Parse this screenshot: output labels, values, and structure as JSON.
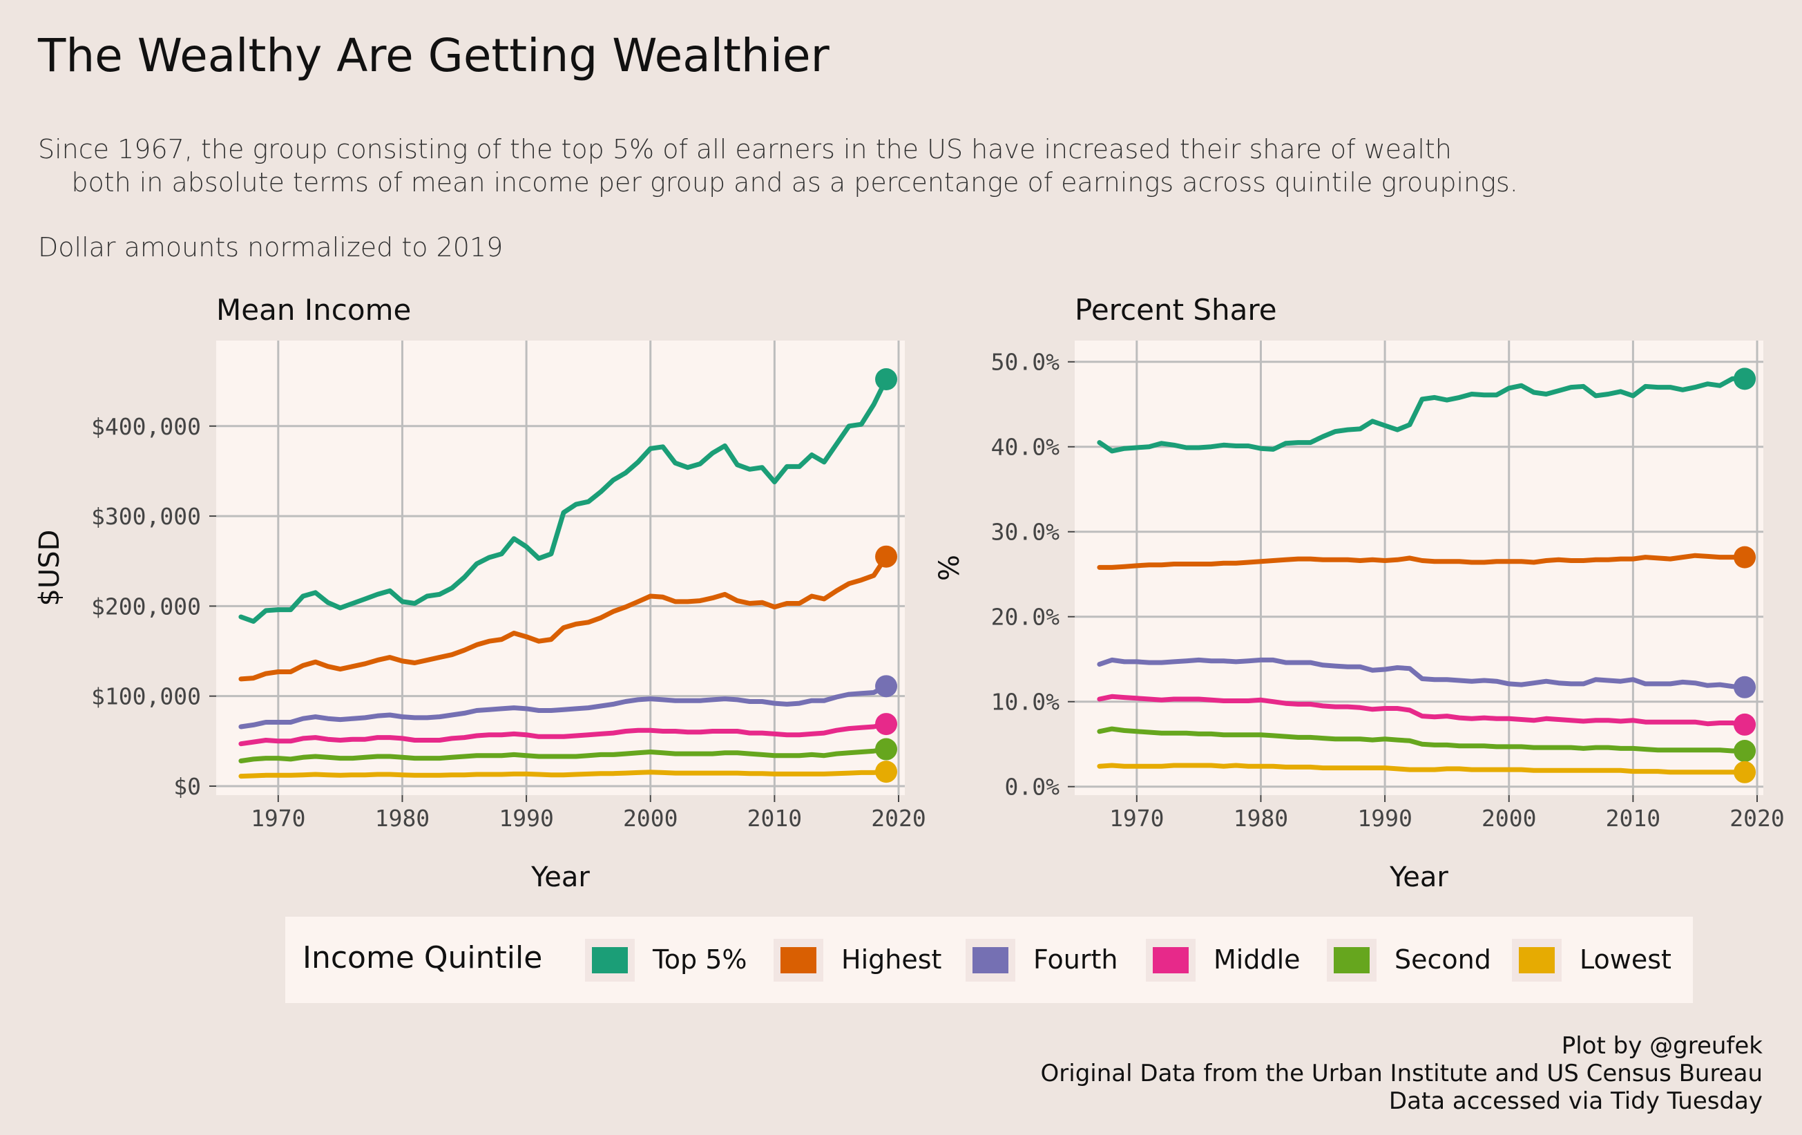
{
  "title": "The Wealthy Are Getting Wealthier",
  "subtitle_lines": [
    "Since 1967, the group consisting of the top 5% of all earners in the US have increased their share of wealth",
    "    both in absolute terms of mean income per group and as a percentange of earnings across quintile groupings."
  ],
  "subtitle_note": "Dollar amounts normalized to 2019",
  "caption": [
    "Plot by @greufek",
    "Original Data from the Urban Institute and US Census Bureau",
    "Data accessed via Tidy Tuesday"
  ],
  "legend": {
    "title": "Income Quintile",
    "items": [
      {
        "label": "Top 5%",
        "color": "#1B9E77"
      },
      {
        "label": "Highest",
        "color": "#D95F02"
      },
      {
        "label": "Fourth",
        "color": "#7570B3"
      },
      {
        "label": "Middle",
        "color": "#E7298A"
      },
      {
        "label": "Second",
        "color": "#66A61E"
      },
      {
        "label": "Lowest",
        "color": "#E6AB02"
      }
    ]
  },
  "chart_data": [
    {
      "type": "line",
      "title": "Mean Income",
      "xlabel": "Year",
      "ylabel": "$USD",
      "xlim": [
        1965,
        2020.5
      ],
      "ylim": [
        -10000,
        495000
      ],
      "x_ticks": [
        1970,
        1980,
        1990,
        2000,
        2010,
        2020
      ],
      "y_ticks": [
        0,
        100000,
        200000,
        300000,
        400000
      ],
      "y_tick_labels": [
        "$0",
        "$100,000",
        "$200,000",
        "$300,000",
        "$400,000"
      ],
      "grid": true,
      "end_point_markers": true,
      "x": [
        1967,
        1968,
        1969,
        1970,
        1971,
        1972,
        1973,
        1974,
        1975,
        1976,
        1977,
        1978,
        1979,
        1980,
        1981,
        1982,
        1983,
        1984,
        1985,
        1986,
        1987,
        1988,
        1989,
        1990,
        1991,
        1992,
        1993,
        1994,
        1995,
        1996,
        1997,
        1998,
        1999,
        2000,
        2001,
        2002,
        2003,
        2004,
        2005,
        2006,
        2007,
        2008,
        2009,
        2010,
        2011,
        2012,
        2013,
        2014,
        2015,
        2016,
        2017,
        2018,
        2019
      ],
      "series": [
        {
          "name": "Top 5%",
          "color": "#1B9E77",
          "values": [
            188000,
            183000,
            195000,
            196000,
            196000,
            211000,
            215000,
            204000,
            198000,
            203000,
            208000,
            213000,
            217000,
            205000,
            203000,
            211000,
            213000,
            220000,
            232000,
            247000,
            254000,
            258000,
            275000,
            266000,
            253000,
            258000,
            304000,
            313000,
            316000,
            327000,
            340000,
            348000,
            360000,
            375000,
            377000,
            359000,
            354000,
            358000,
            370000,
            378000,
            357000,
            352000,
            354000,
            338000,
            355000,
            355000,
            368000,
            360000,
            380000,
            400000,
            402000,
            424000,
            452000
          ]
        },
        {
          "name": "Highest",
          "color": "#D95F02",
          "values": [
            119000,
            120000,
            125000,
            127000,
            127000,
            134000,
            138000,
            133000,
            130000,
            133000,
            136000,
            140000,
            143000,
            139000,
            137000,
            140000,
            143000,
            146000,
            151000,
            157000,
            161000,
            163000,
            170000,
            166000,
            161000,
            163000,
            176000,
            180000,
            182000,
            187000,
            194000,
            199000,
            205000,
            211000,
            210000,
            205000,
            205000,
            206000,
            209000,
            213000,
            206000,
            203000,
            204000,
            199000,
            203000,
            203000,
            211000,
            208000,
            217000,
            225000,
            229000,
            234000,
            255000
          ]
        },
        {
          "name": "Fourth",
          "color": "#7570B3",
          "values": [
            66000,
            68000,
            71000,
            71000,
            71000,
            75000,
            77000,
            75000,
            74000,
            75000,
            76000,
            78000,
            79000,
            77000,
            76000,
            76000,
            77000,
            79000,
            81000,
            84000,
            85000,
            86000,
            87000,
            86000,
            84000,
            84000,
            85000,
            86000,
            87000,
            89000,
            91000,
            94000,
            96000,
            97000,
            96000,
            95000,
            95000,
            95000,
            96000,
            97000,
            96000,
            94000,
            94000,
            92000,
            91000,
            92000,
            95000,
            95000,
            99000,
            102000,
            103000,
            104000,
            111000
          ]
        },
        {
          "name": "Middle",
          "color": "#E7298A",
          "values": [
            47000,
            49000,
            51000,
            50000,
            50000,
            53000,
            54000,
            52000,
            51000,
            52000,
            52000,
            54000,
            54000,
            53000,
            51000,
            51000,
            51000,
            53000,
            54000,
            56000,
            57000,
            57000,
            58000,
            57000,
            55000,
            55000,
            55000,
            56000,
            57000,
            58000,
            59000,
            61000,
            62000,
            62000,
            61000,
            61000,
            60000,
            60000,
            61000,
            61000,
            61000,
            59000,
            59000,
            58000,
            57000,
            57000,
            58000,
            59000,
            62000,
            64000,
            65000,
            66000,
            69000
          ]
        },
        {
          "name": "Second",
          "color": "#66A61E",
          "values": [
            28000,
            30000,
            31000,
            31000,
            30000,
            32000,
            33000,
            32000,
            31000,
            31000,
            32000,
            33000,
            33000,
            32000,
            31000,
            31000,
            31000,
            32000,
            33000,
            34000,
            34000,
            34000,
            35000,
            34000,
            33000,
            33000,
            33000,
            33000,
            34000,
            35000,
            35000,
            36000,
            37000,
            38000,
            37000,
            36000,
            36000,
            36000,
            36000,
            37000,
            37000,
            36000,
            35000,
            34000,
            34000,
            34000,
            35000,
            34000,
            36000,
            37000,
            38000,
            39000,
            41000
          ]
        },
        {
          "name": "Lowest",
          "color": "#E6AB02",
          "values": [
            11000,
            11500,
            12000,
            12000,
            12000,
            12500,
            13000,
            12500,
            12000,
            12500,
            12500,
            13000,
            13000,
            12500,
            12000,
            12000,
            12000,
            12500,
            12500,
            13000,
            13000,
            13000,
            13500,
            13500,
            13000,
            12500,
            12500,
            13000,
            13500,
            14000,
            14000,
            14500,
            15000,
            15500,
            15000,
            14500,
            14500,
            14500,
            14500,
            14500,
            14500,
            14000,
            14000,
            13500,
            13500,
            13500,
            13500,
            13500,
            14000,
            14500,
            15000,
            15000,
            16000
          ]
        }
      ]
    },
    {
      "type": "line",
      "title": "Percent Share",
      "xlabel": "Year",
      "ylabel": "%",
      "xlim": [
        1965,
        2020.5
      ],
      "ylim": [
        -0.01,
        0.525
      ],
      "x_ticks": [
        1970,
        1980,
        1990,
        2000,
        2010,
        2020
      ],
      "y_ticks": [
        0,
        0.1,
        0.2,
        0.3,
        0.4,
        0.5
      ],
      "y_tick_labels": [
        "0.0%",
        "10.0%",
        "20.0%",
        "30.0%",
        "40.0%",
        "50.0%"
      ],
      "grid": true,
      "end_point_markers": true,
      "x": [
        1967,
        1968,
        1969,
        1970,
        1971,
        1972,
        1973,
        1974,
        1975,
        1976,
        1977,
        1978,
        1979,
        1980,
        1981,
        1982,
        1983,
        1984,
        1985,
        1986,
        1987,
        1988,
        1989,
        1990,
        1991,
        1992,
        1993,
        1994,
        1995,
        1996,
        1997,
        1998,
        1999,
        2000,
        2001,
        2002,
        2003,
        2004,
        2005,
        2006,
        2007,
        2008,
        2009,
        2010,
        2011,
        2012,
        2013,
        2014,
        2015,
        2016,
        2017,
        2018,
        2019
      ],
      "series": [
        {
          "name": "Top 5%",
          "color": "#1B9E77",
          "values": [
            0.405,
            0.395,
            0.398,
            0.399,
            0.4,
            0.404,
            0.402,
            0.399,
            0.399,
            0.4,
            0.402,
            0.401,
            0.401,
            0.398,
            0.397,
            0.404,
            0.405,
            0.405,
            0.412,
            0.418,
            0.42,
            0.421,
            0.43,
            0.425,
            0.42,
            0.426,
            0.456,
            0.458,
            0.455,
            0.458,
            0.462,
            0.461,
            0.461,
            0.469,
            0.472,
            0.464,
            0.462,
            0.466,
            0.47,
            0.471,
            0.46,
            0.462,
            0.465,
            0.46,
            0.471,
            0.47,
            0.47,
            0.467,
            0.47,
            0.474,
            0.472,
            0.48,
            0.48
          ]
        },
        {
          "name": "Highest",
          "color": "#D95F02",
          "values": [
            0.258,
            0.258,
            0.259,
            0.26,
            0.261,
            0.261,
            0.262,
            0.262,
            0.262,
            0.262,
            0.263,
            0.263,
            0.264,
            0.265,
            0.266,
            0.267,
            0.268,
            0.268,
            0.267,
            0.267,
            0.267,
            0.266,
            0.267,
            0.266,
            0.267,
            0.269,
            0.266,
            0.265,
            0.265,
            0.265,
            0.264,
            0.264,
            0.265,
            0.265,
            0.265,
            0.264,
            0.266,
            0.267,
            0.266,
            0.266,
            0.267,
            0.267,
            0.268,
            0.268,
            0.27,
            0.269,
            0.268,
            0.27,
            0.272,
            0.271,
            0.27,
            0.27,
            0.27
          ]
        },
        {
          "name": "Fourth",
          "color": "#7570B3",
          "values": [
            0.144,
            0.149,
            0.147,
            0.147,
            0.146,
            0.146,
            0.147,
            0.148,
            0.149,
            0.148,
            0.148,
            0.147,
            0.148,
            0.149,
            0.149,
            0.146,
            0.146,
            0.146,
            0.143,
            0.142,
            0.141,
            0.141,
            0.137,
            0.138,
            0.14,
            0.139,
            0.127,
            0.126,
            0.126,
            0.125,
            0.124,
            0.125,
            0.124,
            0.121,
            0.12,
            0.122,
            0.124,
            0.122,
            0.121,
            0.121,
            0.126,
            0.125,
            0.124,
            0.126,
            0.121,
            0.121,
            0.121,
            0.123,
            0.122,
            0.119,
            0.12,
            0.118,
            0.117
          ]
        },
        {
          "name": "Middle",
          "color": "#E7298A",
          "values": [
            0.103,
            0.106,
            0.105,
            0.104,
            0.103,
            0.102,
            0.103,
            0.103,
            0.103,
            0.102,
            0.101,
            0.101,
            0.101,
            0.102,
            0.1,
            0.098,
            0.097,
            0.097,
            0.095,
            0.094,
            0.094,
            0.093,
            0.091,
            0.092,
            0.092,
            0.09,
            0.083,
            0.082,
            0.083,
            0.081,
            0.08,
            0.081,
            0.08,
            0.08,
            0.079,
            0.078,
            0.08,
            0.079,
            0.078,
            0.077,
            0.078,
            0.078,
            0.077,
            0.078,
            0.076,
            0.076,
            0.076,
            0.076,
            0.076,
            0.074,
            0.075,
            0.075,
            0.073
          ]
        },
        {
          "name": "Second",
          "color": "#66A61E",
          "values": [
            0.065,
            0.068,
            0.066,
            0.065,
            0.064,
            0.063,
            0.063,
            0.063,
            0.062,
            0.062,
            0.061,
            0.061,
            0.061,
            0.061,
            0.06,
            0.059,
            0.058,
            0.058,
            0.057,
            0.056,
            0.056,
            0.056,
            0.055,
            0.056,
            0.055,
            0.054,
            0.05,
            0.049,
            0.049,
            0.048,
            0.048,
            0.048,
            0.047,
            0.047,
            0.047,
            0.046,
            0.046,
            0.046,
            0.046,
            0.045,
            0.046,
            0.046,
            0.045,
            0.045,
            0.044,
            0.043,
            0.043,
            0.043,
            0.043,
            0.043,
            0.043,
            0.042,
            0.042
          ]
        },
        {
          "name": "Lowest",
          "color": "#E6AB02",
          "values": [
            0.024,
            0.025,
            0.024,
            0.024,
            0.024,
            0.024,
            0.025,
            0.025,
            0.025,
            0.025,
            0.024,
            0.025,
            0.024,
            0.024,
            0.024,
            0.023,
            0.023,
            0.023,
            0.022,
            0.022,
            0.022,
            0.022,
            0.022,
            0.022,
            0.021,
            0.02,
            0.02,
            0.02,
            0.021,
            0.021,
            0.02,
            0.02,
            0.02,
            0.02,
            0.02,
            0.019,
            0.019,
            0.019,
            0.019,
            0.019,
            0.019,
            0.019,
            0.019,
            0.018,
            0.018,
            0.018,
            0.017,
            0.017,
            0.017,
            0.017,
            0.017,
            0.017,
            0.017
          ]
        }
      ]
    }
  ]
}
